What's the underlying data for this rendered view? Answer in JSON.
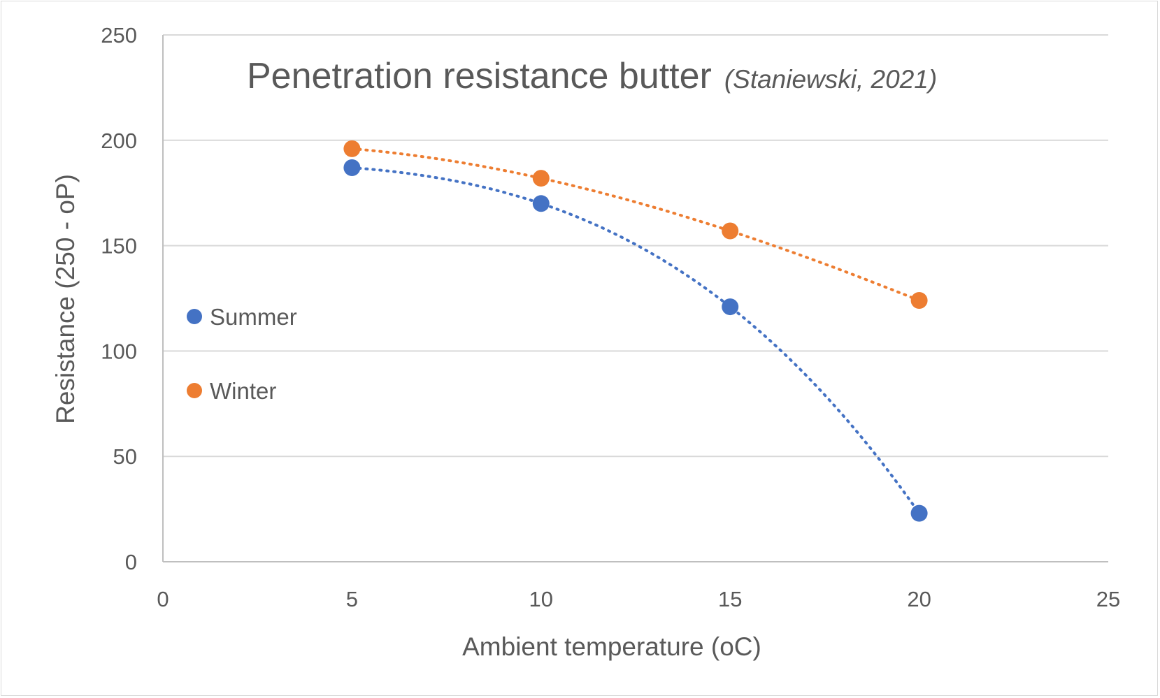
{
  "chart_data": {
    "type": "scatter",
    "title": "Penetration resistance butter",
    "subtitle": "(Staniewski, 2021)",
    "xlabel": "Ambient temperature (oC)",
    "ylabel": "Resistance (250 - oP)",
    "xlim": [
      0,
      25
    ],
    "ylim": [
      0,
      250
    ],
    "xticks": [
      "0",
      "5",
      "10",
      "15",
      "20",
      "25"
    ],
    "yticks": [
      "0",
      "50",
      "100",
      "150",
      "200",
      "250"
    ],
    "grid": "horizontal",
    "legend_position": "left",
    "trendline": "dotted polynomial",
    "series": [
      {
        "name": "Summer",
        "color": "#4472C4",
        "x": [
          5,
          10,
          15,
          20
        ],
        "y": [
          187,
          170,
          121,
          23
        ]
      },
      {
        "name": "Winter",
        "color": "#ED7D31",
        "x": [
          5,
          10,
          15,
          20
        ],
        "y": [
          196,
          182,
          157,
          124
        ]
      }
    ]
  }
}
